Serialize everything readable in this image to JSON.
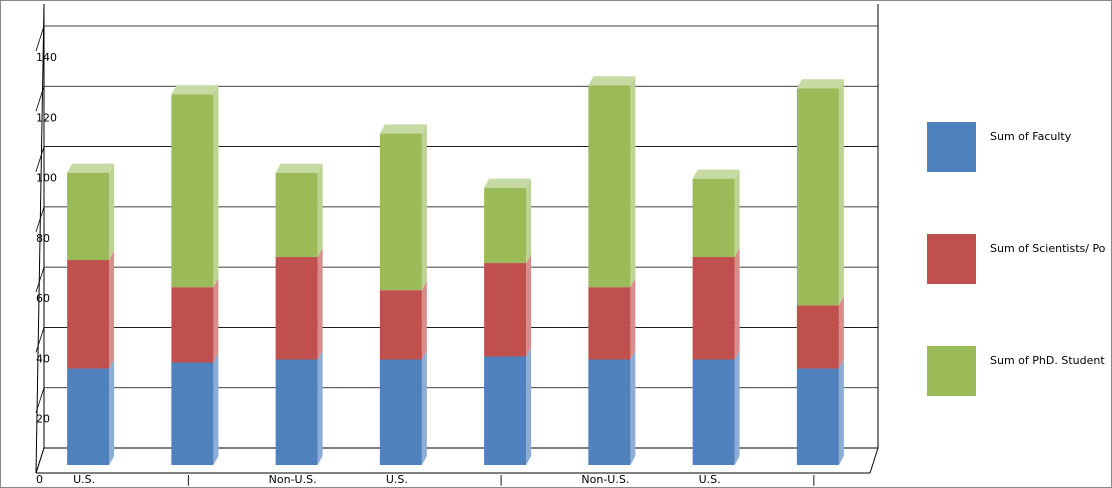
{
  "chart_data": {
    "type": "stacked-bar-3d",
    "categories": [
      "U.S.",
      "|",
      "Non-U.S.",
      "U.S.",
      "|",
      "Non-U.S.",
      "U.S.",
      "|"
    ],
    "series": [
      {
        "name": "Sum of  Faculty",
        "color": "#4f81bd",
        "values": [
          32,
          34,
          35,
          35,
          36,
          35,
          35,
          32
        ]
      },
      {
        "name": "Sum of  Scientists/ Po",
        "color": "#c0504d",
        "values": [
          36,
          25,
          34,
          23,
          31,
          24,
          34,
          21
        ]
      },
      {
        "name": "Sum of  PhD. Student",
        "color": "#9bbb59",
        "values": [
          29,
          64,
          28,
          52,
          25,
          67,
          26,
          72
        ]
      }
    ],
    "ylim": [
      0,
      140
    ],
    "yticks": [
      0,
      20,
      40,
      60,
      80,
      100,
      120,
      140
    ],
    "grid": true
  }
}
